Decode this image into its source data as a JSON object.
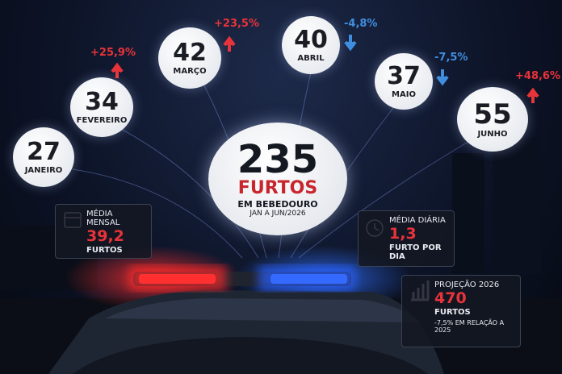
{
  "total": {
    "value": "235",
    "label": "FURTOS",
    "location": "EM BEBEDOURO",
    "period": "JAN A JUN/2026"
  },
  "months": [
    {
      "value": "27",
      "name": "JANEIRO"
    },
    {
      "value": "34",
      "name": "FEVEREIRO",
      "change": "+25,9%"
    },
    {
      "value": "42",
      "name": "MARÇO",
      "change": "+23,5%"
    },
    {
      "value": "40",
      "name": "ABRIL",
      "change": "-4,8%"
    },
    {
      "value": "37",
      "name": "MAIO",
      "change": "-7,5%"
    },
    {
      "value": "55",
      "name": "JUNHO",
      "change": "+48,6%"
    }
  ],
  "cards": [
    {
      "title": "MÉDIA MENSAL",
      "value": "39,2",
      "unit": "FURTOS"
    },
    {
      "title": "MÉDIA DIÁRIA",
      "value": "1,3",
      "unit": "FURTO POR DIA"
    },
    {
      "title": "PROJEÇÃO 2026",
      "value": "470",
      "unit": "FURTOS",
      "note": "-7,5% EM RELAÇÃO A 2025"
    }
  ]
}
